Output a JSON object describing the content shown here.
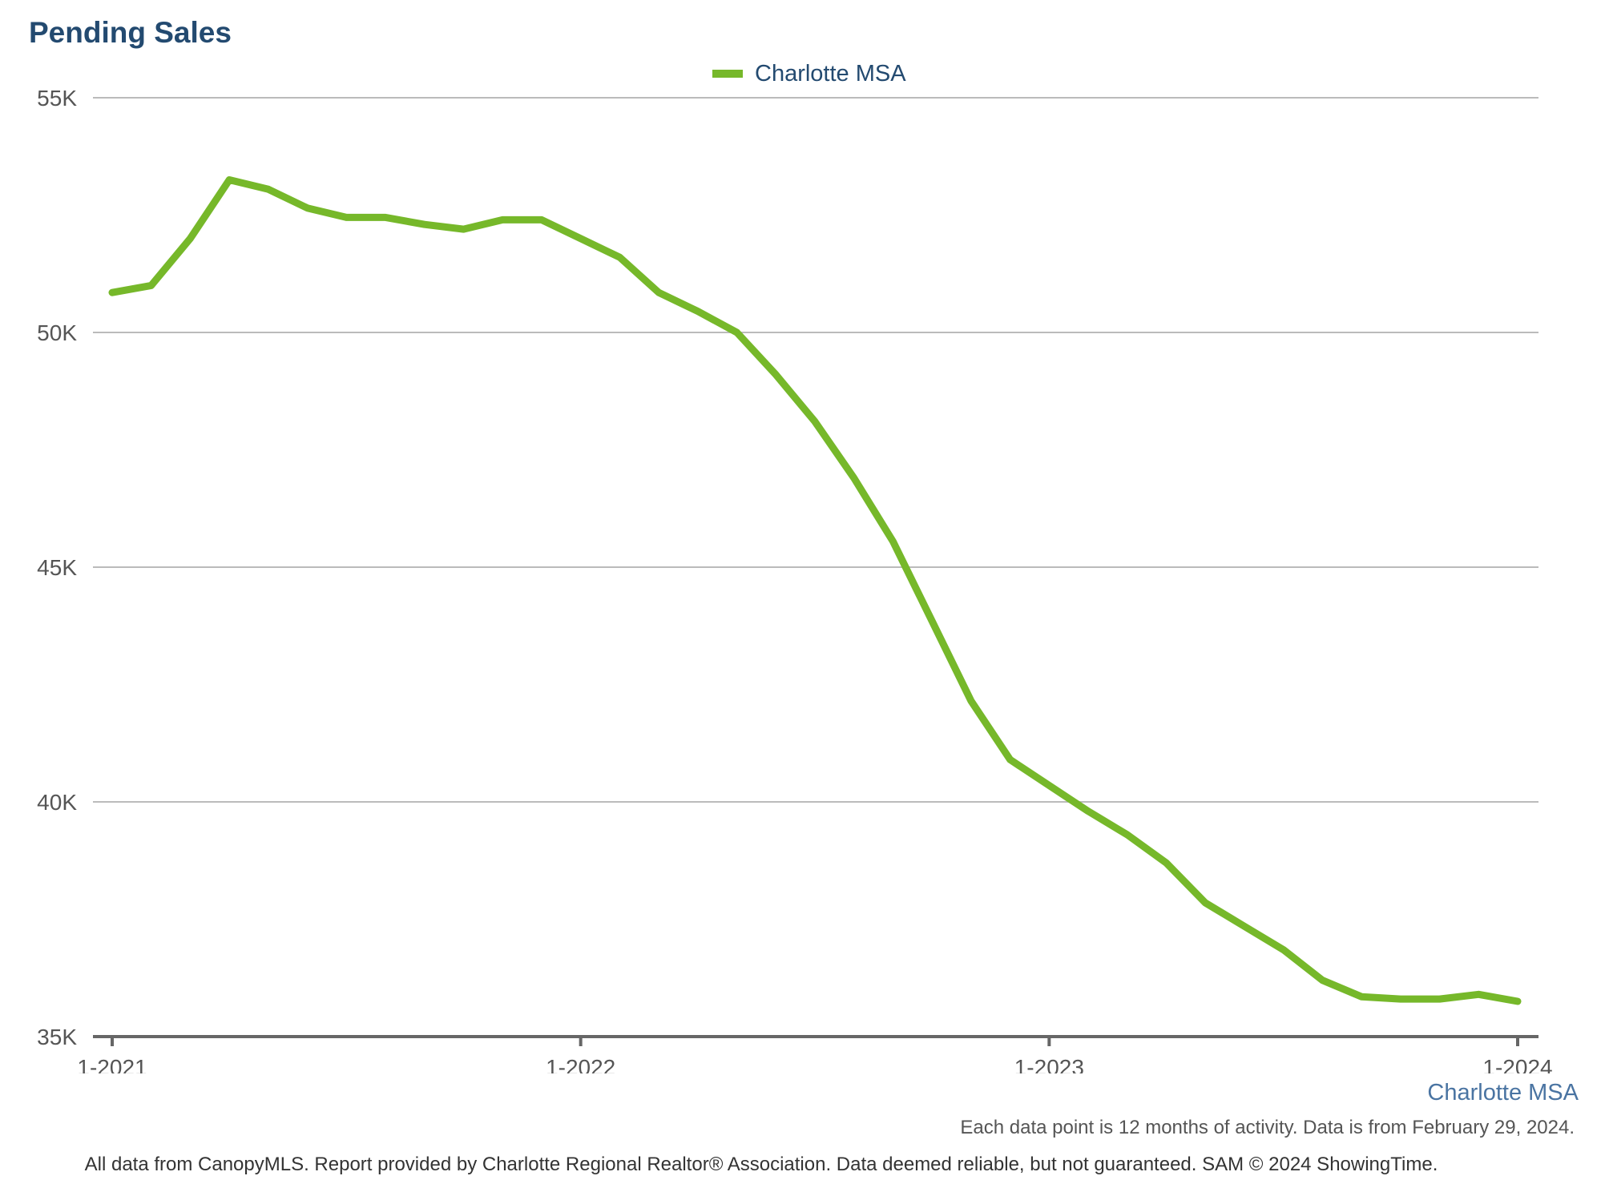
{
  "title": "Pending Sales",
  "legend": {
    "label": "Charlotte MSA"
  },
  "footer": {
    "series_label": "Charlotte MSA",
    "note": "Each data point is 12 months of activity. Data is from February 29, 2024.",
    "credits": "All data from CanopyMLS. Report provided by Charlotte Regional Realtor® Association. Data deemed reliable, but not guaranteed. SAM © 2024 ShowingTime."
  },
  "colors": {
    "series": "#76b82a",
    "title": "#234a70",
    "grid": "#bbbbbb",
    "axis": "#666666"
  },
  "chart_data": {
    "type": "line",
    "title": "Pending Sales",
    "xlabel": "",
    "ylabel": "",
    "x": [
      "1-2021",
      "2-2021",
      "3-2021",
      "4-2021",
      "5-2021",
      "6-2021",
      "7-2021",
      "8-2021",
      "9-2021",
      "10-2021",
      "11-2021",
      "12-2021",
      "1-2022",
      "2-2022",
      "3-2022",
      "4-2022",
      "5-2022",
      "6-2022",
      "7-2022",
      "8-2022",
      "9-2022",
      "10-2022",
      "11-2022",
      "12-2022",
      "1-2023",
      "2-2023",
      "3-2023",
      "4-2023",
      "5-2023",
      "6-2023",
      "7-2023",
      "8-2023",
      "9-2023",
      "10-2023",
      "11-2023",
      "12-2023",
      "1-2024"
    ],
    "series": [
      {
        "name": "Charlotte MSA",
        "values": [
          50850,
          51000,
          52000,
          53250,
          53050,
          52650,
          52450,
          52450,
          52300,
          52200,
          52400,
          52400,
          52000,
          51600,
          50850,
          50450,
          50000,
          49100,
          48100,
          46900,
          45550,
          43850,
          42150,
          40900,
          40350,
          39800,
          39300,
          38700,
          37850,
          37350,
          36850,
          36200,
          35850,
          35800,
          35800,
          35900,
          35750
        ]
      }
    ],
    "x_ticks": [
      "1-2021",
      "1-2022",
      "1-2023",
      "1-2024"
    ],
    "y_ticks": [
      "35K",
      "40K",
      "45K",
      "50K",
      "55K"
    ],
    "y_tick_values": [
      35000,
      40000,
      45000,
      50000,
      55000
    ],
    "ylim": [
      35000,
      55000
    ],
    "grid": true,
    "legend_position": "top-center"
  }
}
